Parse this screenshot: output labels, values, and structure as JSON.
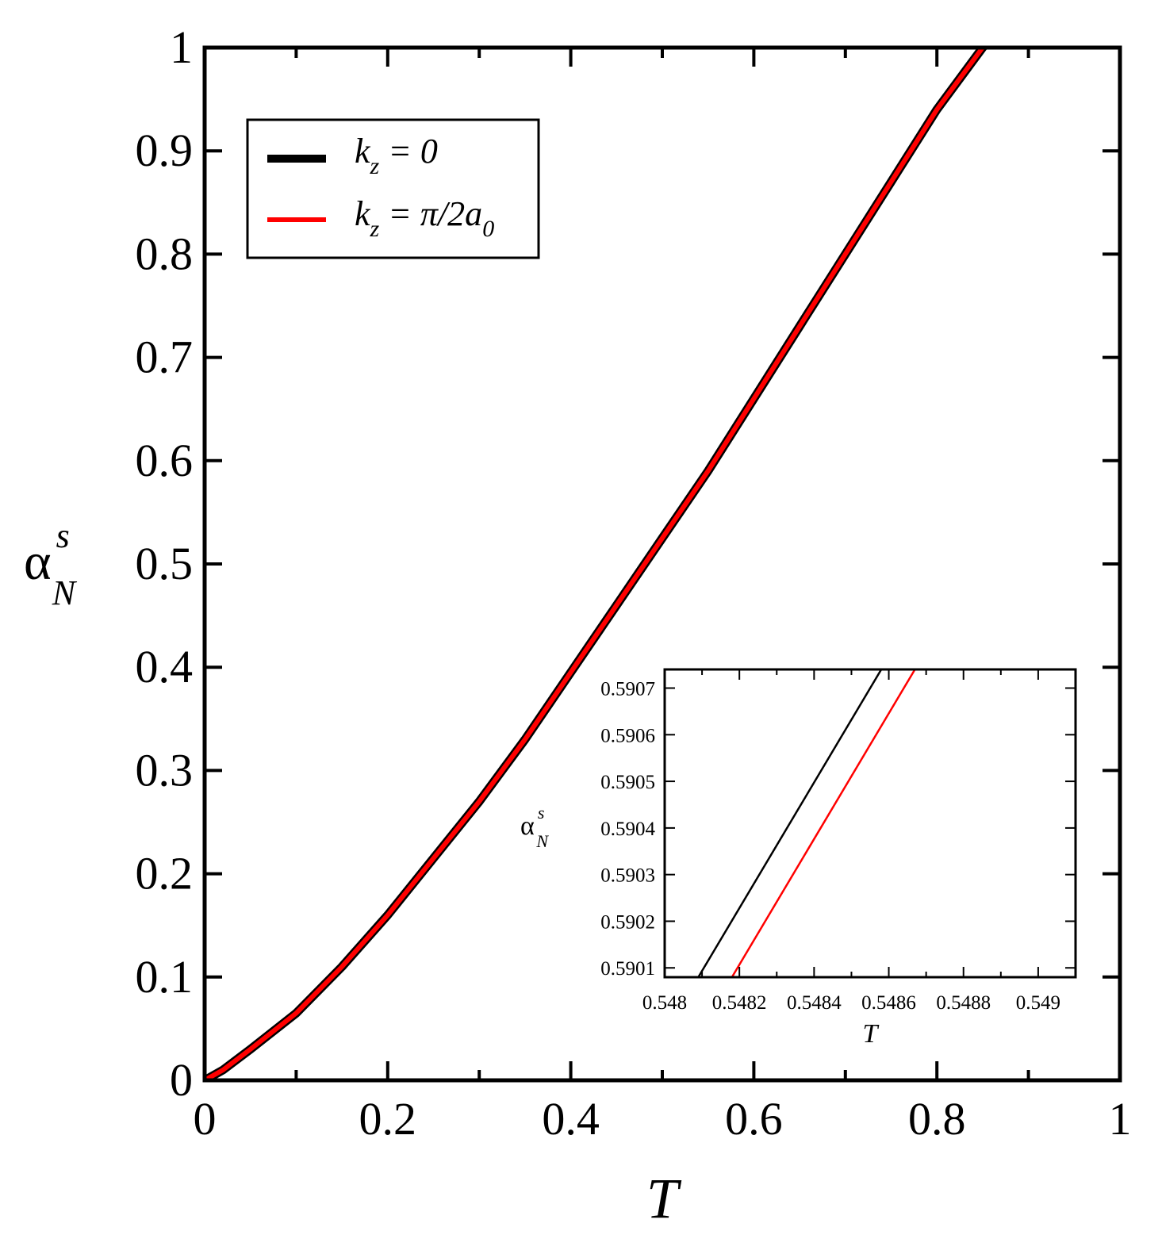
{
  "colors": {
    "series_k0": "#000000",
    "series_kpi": "#ff0000",
    "axes": "#000000",
    "background": "#ffffff"
  },
  "chart_data": [
    {
      "type": "line",
      "xlabel": "T",
      "ylabel": {
        "base": "α",
        "superscript": "s",
        "subscript": "N"
      },
      "xlim": [
        0,
        1
      ],
      "ylim": [
        0,
        1
      ],
      "xticks": [
        0,
        0.2,
        0.4,
        0.6,
        0.8,
        1
      ],
      "xtick_labels": [
        "0",
        "0.2",
        "0.4",
        "0.6",
        "0.8",
        "1"
      ],
      "yticks": [
        0,
        0.1,
        0.2,
        0.3,
        0.4,
        0.5,
        0.6,
        0.7,
        0.8,
        0.9,
        1
      ],
      "ytick_labels": [
        "0",
        "0.1",
        "0.2",
        "0.3",
        "0.4",
        "0.5",
        "0.6",
        "0.7",
        "0.8",
        "0.9",
        "1"
      ],
      "grid": false,
      "legend_position": "top-left",
      "legend": [
        {
          "var": "k",
          "sub": "z",
          "rest": " = 0",
          "sub0": "",
          "color": "#000000"
        },
        {
          "var": "k",
          "sub": "z",
          "rest": " = π/2a",
          "sub0": "0",
          "color": "#ff0000"
        }
      ],
      "series": [
        {
          "name": "k_z = 0",
          "color": "#000000",
          "x": [
            0,
            0.02,
            0.05,
            0.1,
            0.15,
            0.2,
            0.25,
            0.3,
            0.35,
            0.4,
            0.45,
            0.5,
            0.55,
            0.6,
            0.65,
            0.7,
            0.75,
            0.8,
            0.85,
            0.855
          ],
          "y": [
            0,
            0.01,
            0.03,
            0.065,
            0.11,
            0.16,
            0.215,
            0.27,
            0.33,
            0.395,
            0.46,
            0.525,
            0.59,
            0.66,
            0.73,
            0.8,
            0.87,
            0.94,
            1.0,
            1.005
          ]
        },
        {
          "name": "k_z = π/2a_0",
          "color": "#ff0000",
          "x": [
            0,
            0.02,
            0.05,
            0.1,
            0.15,
            0.2,
            0.25,
            0.3,
            0.35,
            0.4,
            0.45,
            0.5,
            0.55,
            0.6,
            0.65,
            0.7,
            0.75,
            0.8,
            0.85,
            0.855
          ],
          "y": [
            0,
            0.01,
            0.03,
            0.065,
            0.11,
            0.16,
            0.215,
            0.27,
            0.33,
            0.395,
            0.46,
            0.525,
            0.59,
            0.66,
            0.73,
            0.8,
            0.87,
            0.94,
            1.0,
            1.005
          ]
        }
      ]
    },
    {
      "type": "line",
      "position": "bottom-right inset",
      "xlabel": "T",
      "ylabel": {
        "base": "α",
        "superscript": "s",
        "subscript": "N"
      },
      "xlim": [
        0.548,
        0.5491
      ],
      "ylim": [
        0.59008,
        0.59074
      ],
      "xticks": [
        0.548,
        0.5482,
        0.5484,
        0.5486,
        0.5488,
        0.549
      ],
      "xtick_labels": [
        "0.548",
        "0.5482",
        "0.5484",
        "0.5486",
        "0.5488",
        "0.549"
      ],
      "yticks": [
        0.5901,
        0.5902,
        0.5903,
        0.5904,
        0.5905,
        0.5906,
        0.5907
      ],
      "ytick_labels": [
        "0.5901",
        "0.5902",
        "0.5903",
        "0.5904",
        "0.5905",
        "0.5906",
        "0.5907"
      ],
      "grid": false,
      "series": [
        {
          "name": "k_z = 0",
          "color": "#000000",
          "x": [
            0.54809,
            0.54858
          ],
          "y": [
            0.59008,
            0.59074
          ]
        },
        {
          "name": "k_z = π/2a_0",
          "color": "#ff0000",
          "x": [
            0.54818,
            0.54867
          ],
          "y": [
            0.59008,
            0.59074
          ]
        }
      ]
    }
  ]
}
